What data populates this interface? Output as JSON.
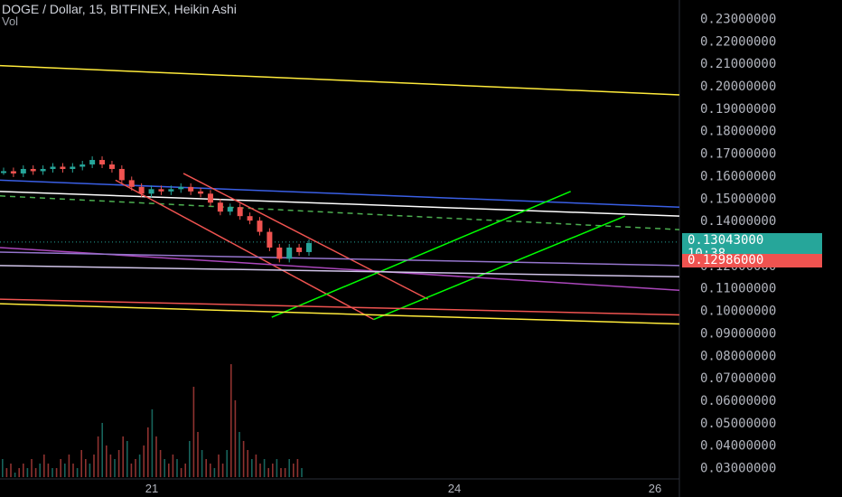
{
  "header": {
    "title": "DOGE / Dollar, 15, BITFINEX, Heikin Ashi",
    "subtitle": "Vol"
  },
  "price_badges": {
    "last_price": "0.13043000",
    "countdown": "10:38",
    "prev_price": "0.12986000",
    "last_color": "#26a69a",
    "prev_color": "#ef5350"
  },
  "chart_data": {
    "type": "candlestick",
    "y_tick_labels": [
      "0.23000000",
      "0.22000000",
      "0.21000000",
      "0.20000000",
      "0.19000000",
      "0.18000000",
      "0.17000000",
      "0.16000000",
      "0.15000000",
      "0.14000000",
      "0.13000000",
      "0.12000000",
      "0.11000000",
      "0.10000000",
      "0.09000000",
      "0.08000000",
      "0.07000000",
      "0.06000000",
      "0.05000000",
      "0.04000000",
      "0.03000000"
    ],
    "ylim": [
      0.025,
      0.235
    ],
    "x_tick_labels": [
      "21",
      "24",
      "26"
    ],
    "price_path": [
      0.162,
      0.161,
      0.163,
      0.162,
      0.163,
      0.164,
      0.163,
      0.164,
      0.165,
      0.167,
      0.165,
      0.163,
      0.158,
      0.155,
      0.152,
      0.154,
      0.153,
      0.154,
      0.155,
      0.153,
      0.152,
      0.148,
      0.144,
      0.146,
      0.142,
      0.14,
      0.135,
      0.128,
      0.123,
      0.128,
      0.126,
      0.13
    ],
    "trend_lines": [
      {
        "color": "#ffeb3b",
        "from": [
          0.0,
          0.209
        ],
        "to": [
          1.0,
          0.196
        ]
      },
      {
        "color": "#3a5fe5",
        "from": [
          0.0,
          0.158
        ],
        "to": [
          1.0,
          0.146
        ]
      },
      {
        "color": "#ffffff",
        "from": [
          0.0,
          0.153
        ],
        "to": [
          1.0,
          0.142
        ]
      },
      {
        "color": "#4caf50",
        "style": "dashed",
        "from": [
          0.0,
          0.151
        ],
        "to": [
          1.0,
          0.136
        ]
      },
      {
        "color": "#ef5350",
        "from": [
          0.17,
          0.158
        ],
        "to": [
          0.55,
          0.096
        ]
      },
      {
        "color": "#ef5350",
        "from": [
          0.27,
          0.161
        ],
        "to": [
          0.63,
          0.105
        ]
      },
      {
        "color": "#00ff00",
        "from": [
          0.4,
          0.097
        ],
        "to": [
          0.84,
          0.153
        ]
      },
      {
        "color": "#00ff00",
        "from": [
          0.55,
          0.096
        ],
        "to": [
          0.92,
          0.142
        ]
      },
      {
        "color": "#ab47bc",
        "from": [
          0.0,
          0.128
        ],
        "to": [
          1.0,
          0.109
        ]
      },
      {
        "color": "#9575cd",
        "from": [
          0.0,
          0.126
        ],
        "to": [
          1.0,
          0.12
        ]
      },
      {
        "color": "#d1c4e9",
        "from": [
          0.0,
          0.12
        ],
        "to": [
          1.0,
          0.115
        ]
      },
      {
        "color": "#ef5350",
        "from": [
          0.0,
          0.105
        ],
        "to": [
          1.0,
          0.098
        ]
      },
      {
        "color": "#ffeb3b",
        "from": [
          0.0,
          0.103
        ],
        "to": [
          1.0,
          0.094
        ]
      }
    ],
    "volume": [
      4,
      2,
      3,
      1,
      2,
      3,
      2,
      4,
      2,
      3,
      5,
      3,
      2,
      2,
      4,
      3,
      5,
      3,
      2,
      6,
      4,
      3,
      5,
      9,
      12,
      7,
      5,
      4,
      6,
      9,
      8,
      3,
      4,
      5,
      7,
      11,
      15,
      9,
      6,
      4,
      3,
      5,
      4,
      2,
      3,
      8,
      20,
      10,
      6,
      4,
      3,
      2,
      5,
      3,
      6,
      25,
      17,
      10,
      8,
      6,
      4,
      5,
      3,
      4,
      2,
      3,
      4,
      2,
      2,
      4,
      3,
      4,
      2
    ]
  }
}
